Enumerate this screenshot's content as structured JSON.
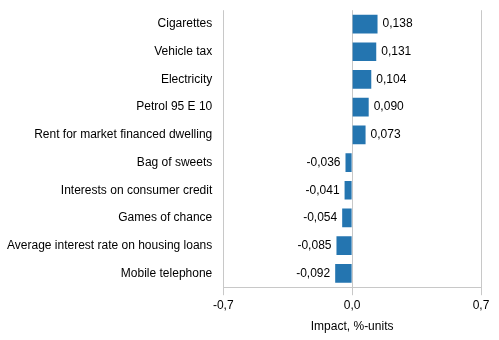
{
  "chart_data": {
    "type": "bar",
    "orientation": "horizontal",
    "x_label": "Impact, %-units",
    "categories": [
      "Cigarettes",
      "Vehicle tax",
      "Electricity",
      "Petrol 95 E 10",
      "Rent for market financed dwelling",
      "Bag of sweets",
      "Interests on consumer credit",
      "Games of chance",
      "Average interest rate on housing loans",
      "Mobile telephone"
    ],
    "values": [
      0.138,
      0.131,
      0.104,
      0.09,
      0.073,
      -0.036,
      -0.041,
      -0.054,
      -0.085,
      -0.092
    ],
    "value_labels": [
      "0,138",
      "0,131",
      "0,104",
      "0,090",
      "0,073",
      "-0,036",
      "-0,041",
      "-0,054",
      "-0,085",
      "-0,092"
    ],
    "data_labels": true,
    "color": "#2475b0",
    "xlim": [
      -0.7,
      0.7
    ],
    "xticks": [
      {
        "value": -0.7,
        "label": "-0,7"
      },
      {
        "value": 0,
        "label": "0,0"
      },
      {
        "value": 0.7,
        "label": "0,7"
      }
    ],
    "grid": true
  }
}
